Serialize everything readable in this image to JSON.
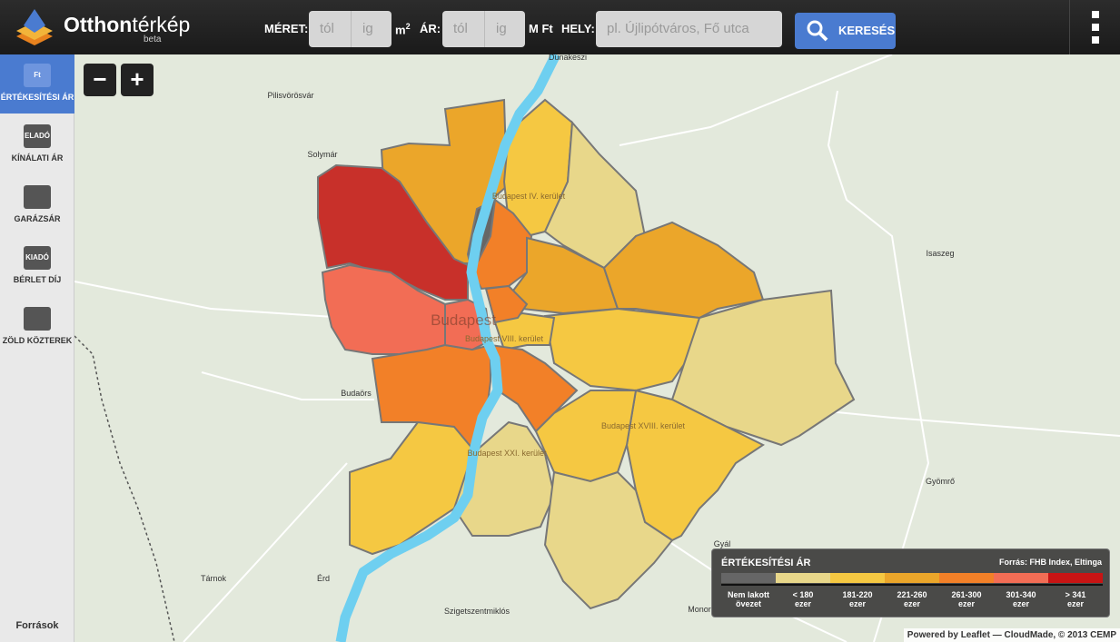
{
  "header": {
    "logo_bold": "Otthon",
    "logo_light": "térkép",
    "logo_sub": "beta",
    "size_label": "MÉRET:",
    "from": "tól",
    "to": "ig",
    "unit_base": "m",
    "unit_sup": "2",
    "price_label": "ÁR:",
    "price_unit": "M Ft",
    "place_label": "HELY:",
    "place_placeholder": "pl. Újlipótváros, Fő utca",
    "search": "KERESÉS"
  },
  "sidebar": {
    "items": [
      {
        "label": "ÉRTÉKESÍTÉSI ÁR",
        "icon": "Ft"
      },
      {
        "label": "KÍNÁLATI ÁR",
        "icon": "ELADÓ"
      },
      {
        "label": "GARÁZSÁR"
      },
      {
        "label": "BÉRLET DÍJ",
        "icon": "KIADÓ"
      },
      {
        "label": "ZÖLD KÖZTEREK"
      }
    ],
    "footer": "Források"
  },
  "map": {
    "zoom_out": "−",
    "zoom_in": "+",
    "places": [
      "Dunakeszi",
      "Pilisvörösvár",
      "Solymár",
      "Budapest IV. kerület",
      "Isaszeg",
      "Budapest",
      "Budapest VIII. kerület",
      "Budaörs",
      "Budapest XVIII. kerület",
      "Budapest XXI. kerület",
      "Gyömrő",
      "Tárnok",
      "Érd",
      "Szigetszentmiklós",
      "Gyál",
      "Monor"
    ],
    "attribution": "Powered by Leaflet — CloudMade, © 2013 CEMP"
  },
  "legend": {
    "title": "ÉRTÉKESÍTÉSI ÁR",
    "source": "Forrás: FHB Index, Eltinga",
    "items": [
      {
        "lines": [
          "Nem lakott",
          "övezet"
        ],
        "color": "#666666"
      },
      {
        "lines": [
          "< 180",
          "ezer"
        ],
        "color": "#e8d78a"
      },
      {
        "lines": [
          "181-220",
          "ezer"
        ],
        "color": "#f5c842"
      },
      {
        "lines": [
          "221-260",
          "ezer"
        ],
        "color": "#eba62a"
      },
      {
        "lines": [
          "261-300",
          "ezer"
        ],
        "color": "#f28028"
      },
      {
        "lines": [
          "301-340",
          "ezer"
        ],
        "color": "#f26d55"
      },
      {
        "lines": [
          "> 341",
          "ezer"
        ],
        "color": "#c81414"
      }
    ]
  }
}
